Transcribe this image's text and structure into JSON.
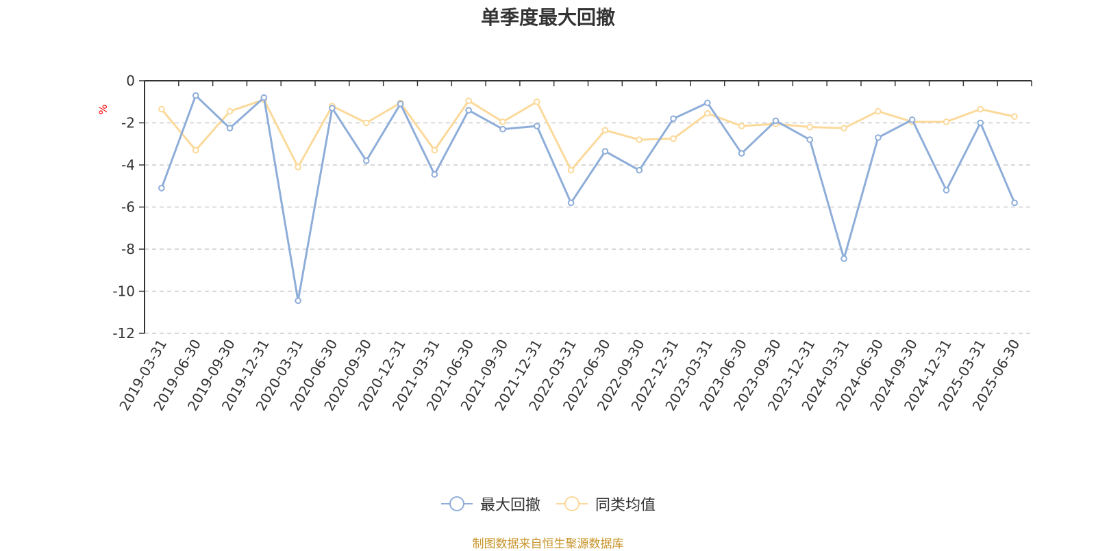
{
  "chart_data": {
    "type": "line",
    "title": "单季度最大回撤",
    "ylabel": "%",
    "ylim": [
      -12,
      0
    ],
    "yticks": [
      0,
      -2,
      -4,
      -6,
      -8,
      -10,
      -12
    ],
    "grid": true,
    "legend_position": "bottom",
    "categories": [
      "2019-03-31",
      "2019-06-30",
      "2019-09-30",
      "2019-12-31",
      "2020-03-31",
      "2020-06-30",
      "2020-09-30",
      "2020-12-31",
      "2021-03-31",
      "2021-06-30",
      "2021-09-30",
      "2021-12-31",
      "2022-03-31",
      "2022-06-30",
      "2022-09-30",
      "2022-12-31",
      "2023-03-31",
      "2023-06-30",
      "2023-09-30",
      "2023-12-31",
      "2024-03-31",
      "2024-06-30",
      "2024-09-30",
      "2024-12-31",
      "2025-03-31",
      "2025-06-30"
    ],
    "series": [
      {
        "name": "最大回撤",
        "color": "#8eadd9",
        "values": [
          -5.1,
          -0.7,
          -2.25,
          -0.8,
          -10.45,
          -1.3,
          -3.8,
          -1.1,
          -4.45,
          -1.4,
          -2.3,
          -2.15,
          -5.8,
          -3.35,
          -4.25,
          -1.8,
          -1.05,
          -3.45,
          -1.9,
          -2.8,
          -8.45,
          -2.7,
          -1.85,
          -5.2,
          -2.0,
          -5.8
        ]
      },
      {
        "name": "同类均值",
        "color": "#fbd99a",
        "values": [
          -1.35,
          -3.3,
          -1.45,
          -0.9,
          -4.1,
          -1.2,
          -2.0,
          -1.05,
          -3.3,
          -0.95,
          -1.95,
          -1.0,
          -4.25,
          -2.35,
          -2.8,
          -2.75,
          -1.55,
          -2.15,
          -2.05,
          -2.2,
          -2.25,
          -1.45,
          -1.95,
          -1.95,
          -1.35,
          -1.7
        ]
      }
    ]
  },
  "source_note": "制图数据来自恒生聚源数据库"
}
